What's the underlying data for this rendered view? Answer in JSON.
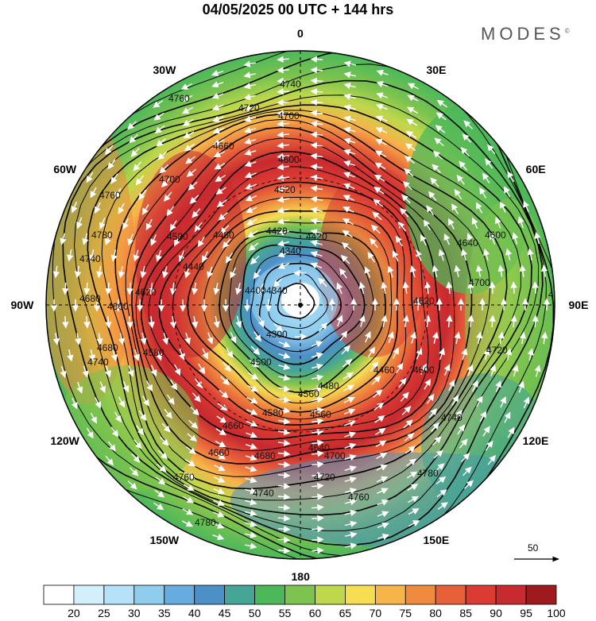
{
  "title": "04/05/2025  00 UTC  + 144 hrs",
  "brand": "MODES",
  "brand_mark": "©",
  "longitude_labels": [
    {
      "text": "0",
      "lon": 0
    },
    {
      "text": "30E",
      "lon": 30
    },
    {
      "text": "60E",
      "lon": 60
    },
    {
      "text": "90E",
      "lon": 90
    },
    {
      "text": "120E",
      "lon": 120
    },
    {
      "text": "150E",
      "lon": 150
    },
    {
      "text": "180",
      "lon": 180
    },
    {
      "text": "150W",
      "lon": -150
    },
    {
      "text": "120W",
      "lon": -120
    },
    {
      "text": "90W",
      "lon": -90
    },
    {
      "text": "60W",
      "lon": -60
    },
    {
      "text": "30W",
      "lon": -30
    }
  ],
  "contour_labels": [
    "4780",
    "4760",
    "4740",
    "4720",
    "4700",
    "4680",
    "4660",
    "4640",
    "4620",
    "4600",
    "4580",
    "4560",
    "4540",
    "4520",
    "4500",
    "4480",
    "4460",
    "4440",
    "4420",
    "4400",
    "4380",
    "4360",
    "4340",
    "4320",
    "4300"
  ],
  "contour_label_list": [
    "4740",
    "4760",
    "4720",
    "4700",
    "4660",
    "4600",
    "4700",
    "4520",
    "4580",
    "4480",
    "4420",
    "4640",
    "4760",
    "4780",
    "4740",
    "4680",
    "4620",
    "4340",
    "4400",
    "4300",
    "4560",
    "4600",
    "4500",
    "4460",
    "4480",
    "4580",
    "4560",
    "4640",
    "4660",
    "4680",
    "4700",
    "4720",
    "4740",
    "4760",
    "4780",
    "4700",
    "4620",
    "4720",
    "4780",
    "4740",
    "4760",
    "4780",
    "4680",
    "4740",
    "4660",
    "4580",
    "4660",
    "4440",
    "4340",
    "4420",
    "4600",
    "4780"
  ],
  "reference_vector": {
    "value": "50",
    "color": "#000000"
  },
  "colorbar": {
    "labels": [
      "20",
      "25",
      "30",
      "35",
      "40",
      "45",
      "50",
      "55",
      "60",
      "65",
      "70",
      "75",
      "80",
      "85",
      "90",
      "95",
      "100"
    ],
    "colors": [
      "#ffffff",
      "#d4effc",
      "#b5e2f9",
      "#8fcdef",
      "#66acde",
      "#4d8fc7",
      "#46a596",
      "#4cb85a",
      "#7cc34f",
      "#bfd84b",
      "#f6dd52",
      "#f7b449",
      "#f08a3e",
      "#e8603a",
      "#dc3b33",
      "#c72a2f",
      "#9e1a1d"
    ]
  }
}
